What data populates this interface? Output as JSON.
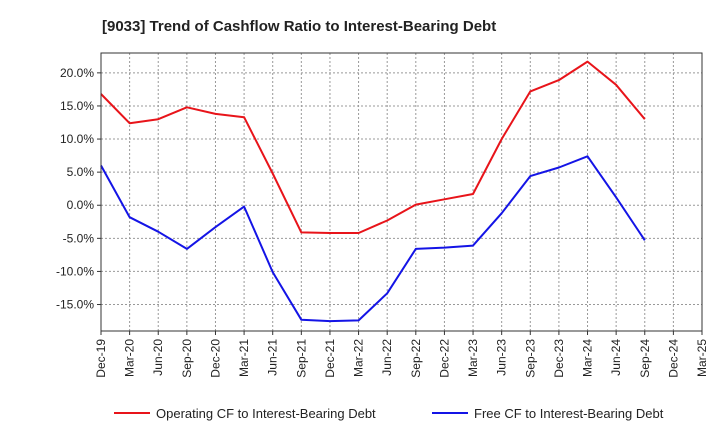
{
  "chart_data": {
    "type": "line",
    "title": "[9033]  Trend of Cashflow Ratio to Interest-Bearing Debt",
    "xlabel": "",
    "ylabel": "",
    "categories": [
      "Dec-19",
      "Mar-20",
      "Jun-20",
      "Sep-20",
      "Dec-20",
      "Mar-21",
      "Jun-21",
      "Sep-21",
      "Dec-21",
      "Mar-22",
      "Jun-22",
      "Sep-22",
      "Dec-22",
      "Mar-23",
      "Jun-23",
      "Sep-23",
      "Dec-23",
      "Mar-24",
      "Jun-24",
      "Sep-24",
      "Dec-24",
      "Mar-25"
    ],
    "yticks": [
      20,
      15,
      10,
      5,
      0,
      -5,
      -10,
      -15
    ],
    "ytick_labels": [
      "20.0%",
      "15.0%",
      "10.0%",
      "5.0%",
      "0.0%",
      "-5.0%",
      "-10.0%",
      "-15.0%"
    ],
    "ylim": [
      -19.0,
      23.0
    ],
    "grid": true,
    "legend_position": "bottom",
    "series": [
      {
        "name": "Operating CF to Interest-Bearing Debt",
        "color": "#e8141a",
        "values": [
          16.8,
          12.4,
          13.0,
          14.8,
          13.8,
          13.3,
          4.8,
          -4.1,
          -4.2,
          -4.2,
          -2.3,
          0.1,
          0.9,
          1.7,
          10.0,
          17.2,
          18.9,
          21.7,
          18.2,
          13.0,
          null,
          null
        ]
      },
      {
        "name": "Free CF to Interest-Bearing Debt",
        "color": "#1414e6",
        "values": [
          6.0,
          -1.8,
          -4.0,
          -6.6,
          -3.3,
          -0.2,
          -10.1,
          -17.3,
          -17.5,
          -17.4,
          -13.3,
          -6.6,
          -6.4,
          -6.1,
          -1.2,
          4.4,
          5.7,
          7.4,
          1.2,
          -5.3,
          null,
          null
        ]
      }
    ]
  }
}
